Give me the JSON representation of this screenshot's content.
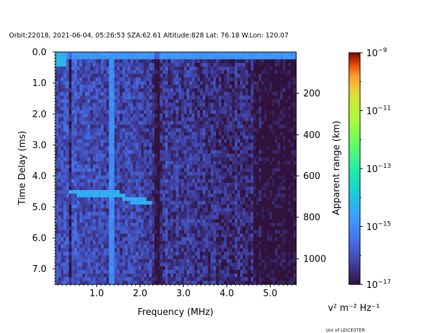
{
  "header": {
    "title": "Orbit:22018, 2021-06-04, 05:26:53 SZA:62.61 Altitude:828 Lat: 76.18 W.Lon: 120.07"
  },
  "footer": {
    "credit": "Uni of LEICESTER"
  },
  "chart_data": {
    "type": "heatmap",
    "xlabel": "Frequency (MHz)",
    "ylabel": "Time Delay (ms)",
    "ylabel_right": "Apparent range (km)",
    "xlim": [
      0.05,
      5.6
    ],
    "ylim": [
      7.5,
      0.0
    ],
    "x_ticks": [
      {
        "value": 1.0,
        "label": "1.0"
      },
      {
        "value": 2.0,
        "label": "2.0"
      },
      {
        "value": 3.0,
        "label": "3.0"
      },
      {
        "value": 4.0,
        "label": "4.0"
      },
      {
        "value": 5.0,
        "label": "5.0"
      }
    ],
    "y_ticks": [
      {
        "value": 0.0,
        "label": "0.0"
      },
      {
        "value": 1.0,
        "label": "1.0"
      },
      {
        "value": 2.0,
        "label": "2.0"
      },
      {
        "value": 3.0,
        "label": "3.0"
      },
      {
        "value": 4.0,
        "label": "4.0"
      },
      {
        "value": 5.0,
        "label": "5.0"
      },
      {
        "value": 6.0,
        "label": "6.0"
      },
      {
        "value": 7.0,
        "label": "7.0"
      }
    ],
    "range_ticks": [
      {
        "delay_ms": 1.33,
        "label": "200"
      },
      {
        "delay_ms": 2.67,
        "label": "400"
      },
      {
        "delay_ms": 4.0,
        "label": "600"
      },
      {
        "delay_ms": 5.33,
        "label": "800"
      },
      {
        "delay_ms": 6.67,
        "label": "1000"
      }
    ],
    "colorbar": {
      "colormap": "turbo",
      "scale": "log",
      "min": 1e-17,
      "max": 1e-09,
      "ticks": [
        {
          "value": 1e-09,
          "base": "10",
          "exp": "−9"
        },
        {
          "value": 1e-11,
          "base": "10",
          "exp": "−11"
        },
        {
          "value": 1e-13,
          "base": "10",
          "exp": "−13"
        },
        {
          "value": 1e-15,
          "base": "10",
          "exp": "−15"
        },
        {
          "value": 1e-17,
          "base": "10",
          "exp": "−17"
        }
      ],
      "unit": "v² m⁻² Hz⁻¹"
    },
    "features": {
      "surface_echo": {
        "delay_ms": 0.15,
        "freq_range_mhz": [
          0.05,
          5.6
        ],
        "level_log10": -14.8
      },
      "echo_trace": [
        {
          "freq_mhz": 0.35,
          "delay_ms": 4.5
        },
        {
          "freq_mhz": 0.8,
          "delay_ms": 4.6
        },
        {
          "freq_mhz": 1.2,
          "delay_ms": 4.55
        },
        {
          "freq_mhz": 1.5,
          "delay_ms": 4.6
        },
        {
          "freq_mhz": 1.8,
          "delay_ms": 4.8
        },
        {
          "freq_mhz": 2.3,
          "delay_ms": 4.85
        }
      ],
      "dark_stripes_mhz": [
        0.38,
        2.38
      ],
      "bright_stripe_mhz": 1.35
    }
  }
}
